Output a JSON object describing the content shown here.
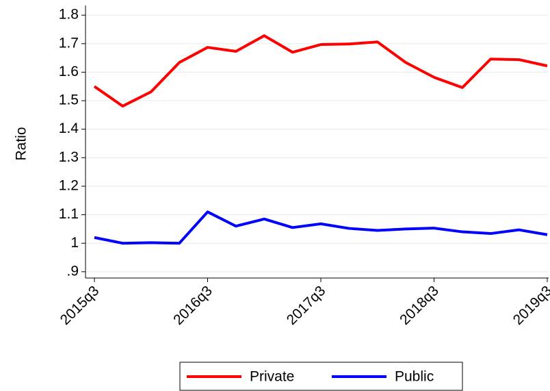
{
  "chart_data": {
    "type": "line",
    "y_label": "Ratio",
    "categories": [
      "2015q3",
      null,
      null,
      null,
      "2016q3",
      null,
      null,
      null,
      "2017q3",
      null,
      null,
      null,
      "2018q3",
      null,
      null,
      null,
      "2019q3"
    ],
    "series": [
      {
        "name": "Private",
        "color": "#ff0000",
        "values": [
          1.55,
          1.481,
          1.531,
          1.634,
          1.687,
          1.673,
          1.728,
          1.67,
          1.697,
          1.699,
          1.706,
          1.634,
          1.582,
          1.546,
          1.646,
          1.644,
          1.622
        ]
      },
      {
        "name": "Public",
        "color": "#0000ff",
        "values": [
          1.02,
          1.0,
          1.002,
          1.0,
          1.11,
          1.06,
          1.085,
          1.055,
          1.068,
          1.052,
          1.045,
          1.05,
          1.053,
          1.04,
          1.034,
          1.047,
          1.03
        ]
      }
    ],
    "ylim": [
      0.878,
      1.834
    ],
    "yticks": [
      {
        "value": 0.9,
        "label": ".9"
      },
      1,
      1.1,
      1.2,
      1.3,
      1.4,
      1.5,
      1.6,
      1.7,
      1.8
    ],
    "grid": true,
    "legend": "bottom"
  }
}
